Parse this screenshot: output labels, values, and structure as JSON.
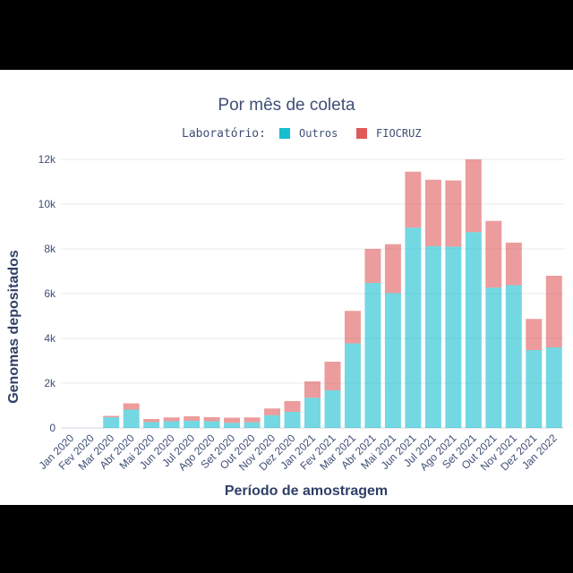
{
  "chart_data": {
    "type": "bar",
    "stacked": true,
    "title": "Por mês de coleta",
    "legend": {
      "title": "Laboratório:",
      "placement": "top-center"
    },
    "xlabel": "Período de amostragem",
    "ylabel": "Genomas depositados",
    "ylim": [
      0,
      12000
    ],
    "yticks": [
      0,
      2000,
      4000,
      6000,
      8000,
      10000,
      12000
    ],
    "ytick_labels": [
      "0",
      "2k",
      "4k",
      "6k",
      "8k",
      "10k",
      "12k"
    ],
    "grid": true,
    "categories": [
      "Jan 2020",
      "Fev 2020",
      "Mar 2020",
      "Abr 2020",
      "Mai 2020",
      "Jun 2020",
      "Jul 2020",
      "Ago 2020",
      "Set 2020",
      "Out 2020",
      "Nov 2020",
      "Dez 2020",
      "Jan 2021",
      "Fev 2021",
      "Mar 2021",
      "Abr 2021",
      "Mai 2021",
      "Jun 2021",
      "Jul 2021",
      "Ago 2021",
      "Set 2021",
      "Out 2021",
      "Nov 2021",
      "Dez 2021",
      "Jan 2022"
    ],
    "series": [
      {
        "name": "Outros",
        "color": "#17becf",
        "values": [
          0,
          0,
          480,
          820,
          260,
          300,
          320,
          300,
          230,
          250,
          570,
          720,
          1350,
          1680,
          3780,
          6480,
          6030,
          8950,
          8120,
          8100,
          8750,
          6270,
          6380,
          3480,
          3600
        ]
      },
      {
        "name": "FIOCRUZ",
        "color": "#e05a5a",
        "values": [
          0,
          0,
          60,
          280,
          140,
          170,
          200,
          180,
          230,
          220,
          300,
          480,
          730,
          1280,
          1450,
          1520,
          2180,
          2500,
          2970,
          2960,
          3250,
          2980,
          1900,
          1390,
          3200
        ]
      }
    ]
  }
}
